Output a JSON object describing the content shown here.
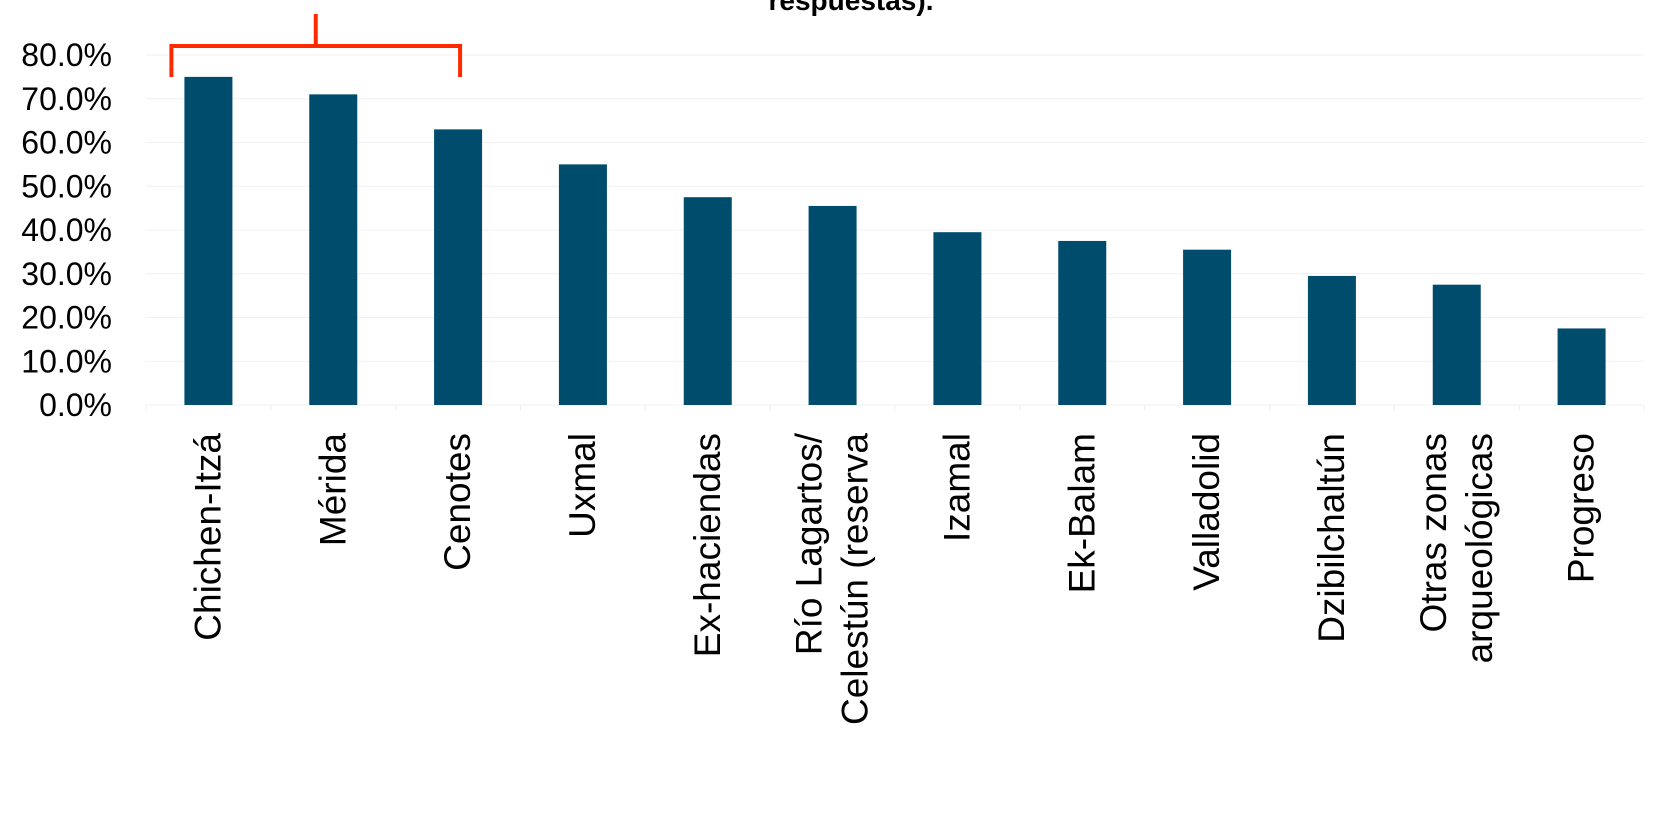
{
  "chart_data": {
    "type": "bar",
    "title": "respuestas).",
    "xlabel": "",
    "ylabel": "",
    "ylim": [
      0,
      80
    ],
    "yticks": [
      "0.0%",
      "10.0%",
      "20.0%",
      "30.0%",
      "40.0%",
      "50.0%",
      "60.0%",
      "70.0%",
      "80.0%"
    ],
    "grid": true,
    "categories": [
      [
        "Chichen-Itzá"
      ],
      [
        "Mérida"
      ],
      [
        "Cenotes"
      ],
      [
        "Uxmal"
      ],
      [
        "Ex-haciendas"
      ],
      [
        "Río Lagartos/",
        "Celestún (reserva"
      ],
      [
        "Izamal"
      ],
      [
        "Ek-Balam"
      ],
      [
        "Valladolid"
      ],
      [
        "Dzibilchaltún"
      ],
      [
        "Otras zonas",
        "arqueológicas"
      ],
      [
        "Progreso"
      ]
    ],
    "values": [
      75.0,
      71.0,
      63.0,
      55.0,
      47.5,
      45.5,
      39.5,
      37.5,
      35.5,
      29.5,
      27.5,
      17.5
    ],
    "highlight": {
      "categories": [
        "Chichen-Itzá",
        "Mérida",
        "Cenotes"
      ],
      "style": "bracket"
    },
    "colors": {
      "bar": "#004c6d",
      "bracket": "#ff2a00",
      "grid": "#f0f0f0"
    }
  }
}
